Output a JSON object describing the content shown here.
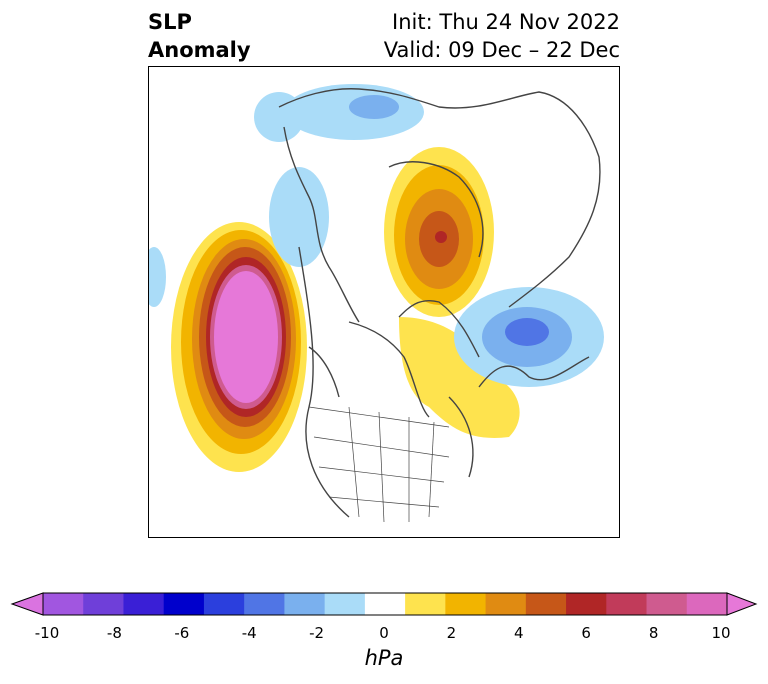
{
  "title": {
    "left_line1": "SLP",
    "left_line2": "Anomaly",
    "right_line1": "Init: Thu 24 Nov 2022",
    "right_line2": "Valid: 09 Dec – 22 Dec"
  },
  "colorbar": {
    "units": "hPa",
    "ticks": [
      "-10",
      "-8",
      "-6",
      "-4",
      "-2",
      "0",
      "2",
      "4",
      "6",
      "8",
      "10"
    ],
    "colors": [
      "#da73e0",
      "#a156e0",
      "#6f3fd9",
      "#3a1fd6",
      "#0000cc",
      "#2b3fdd",
      "#5075e5",
      "#7ab0ee",
      "#aadcf8",
      "#ffffff",
      "#fee34e",
      "#f2b400",
      "#e08b12",
      "#c65718",
      "#b02626",
      "#c13b5a",
      "#cf5b8f",
      "#dc68bd",
      "#e678d8"
    ],
    "extend": "both"
  },
  "map": {
    "projection": "polar-stereographic",
    "region": "Northern Hemisphere"
  }
}
